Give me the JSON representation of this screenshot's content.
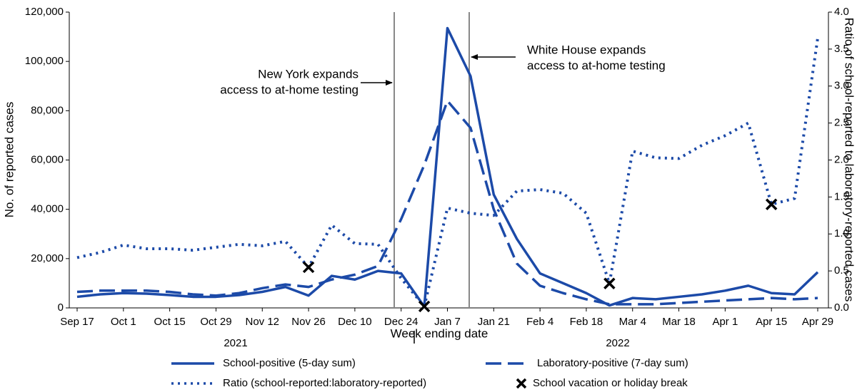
{
  "chart_data": {
    "type": "line",
    "categories": [
      "Sep 17",
      null,
      "Oct 1",
      null,
      "Oct 15",
      null,
      "Oct 29",
      null,
      "Nov 12",
      null,
      "Nov 26",
      null,
      "Dec 10",
      null,
      "Dec 24",
      null,
      "Jan 7",
      null,
      "Jan 21",
      null,
      "Feb 4",
      null,
      "Feb 18",
      null,
      "Mar 4",
      null,
      "Mar 18",
      null,
      "Apr 1",
      null,
      "Apr 15",
      null,
      "Apr 29"
    ],
    "year_labels": [
      "2021",
      "2022"
    ],
    "x_label": "Week ending date",
    "y_label": "No. of reported cases",
    "y2_label": "Ratio of school-reported to laboratory-reported cases",
    "ylim": [
      0,
      120000
    ],
    "yticks": [
      0,
      {
        "value": 20000,
        "label": "20,000"
      },
      {
        "value": 40000,
        "label": "40,000"
      },
      {
        "value": 60000,
        "label": "60,000"
      },
      {
        "value": 80000,
        "label": "80,000"
      },
      {
        "value": 100000,
        "label": "100,000"
      },
      {
        "value": 120000,
        "label": "120,000"
      }
    ],
    "y2lim": [
      0,
      4
    ],
    "y2ticks": [
      {
        "value": 0,
        "label": "0.0"
      },
      {
        "value": 0.5,
        "label": "0.5"
      },
      {
        "value": 1,
        "label": "1.0"
      },
      {
        "value": 1.5,
        "label": "1.5"
      },
      {
        "value": 2,
        "label": "2.0"
      },
      {
        "value": 2.5,
        "label": "2.5"
      },
      {
        "value": 3,
        "label": "3.0"
      },
      {
        "value": 3.5,
        "label": "3.5"
      },
      {
        "value": 4,
        "label": "4.0"
      }
    ],
    "annotations": [
      {
        "lines": [
          "New York expands",
          "access to at-home testing"
        ]
      },
      {
        "lines": [
          "White House expands",
          "access to at-home testing"
        ]
      }
    ],
    "series": [
      {
        "name": "School-positive (5-day sum)",
        "color": "#1c4aa8",
        "style": "solid",
        "values": [
          4500,
          5500,
          6000,
          5800,
          5200,
          4500,
          4500,
          5200,
          6500,
          8500,
          5000,
          13000,
          11500,
          15000,
          14000,
          500,
          113500,
          94000,
          46000,
          28000,
          14000,
          10000,
          6000,
          1000,
          4000,
          3500,
          4500,
          5500,
          7000,
          9000,
          6000,
          5500,
          14500
        ]
      },
      {
        "name": "Laboratory-positive (7-day sum)",
        "color": "#1c4aa8",
        "style": "dashed",
        "values": [
          6500,
          7000,
          7000,
          7000,
          6500,
          5500,
          5000,
          6000,
          8000,
          9500,
          8500,
          11500,
          13500,
          17000,
          36000,
          58000,
          84000,
          73000,
          40000,
          18000,
          9000,
          6000,
          3500,
          1500,
          1500,
          1500,
          2000,
          2500,
          3000,
          3500,
          4000,
          3500,
          4000
        ]
      },
      {
        "name": "Ratio (school-reported:laboratory-reported)",
        "color": "#1c4aa8",
        "style": "dotted",
        "axis": "y2",
        "values": [
          0.68,
          0.75,
          0.85,
          0.8,
          0.8,
          0.78,
          0.82,
          0.86,
          0.84,
          0.9,
          0.55,
          1.12,
          0.87,
          0.86,
          0.4,
          0.02,
          1.35,
          1.28,
          1.25,
          1.58,
          1.6,
          1.55,
          1.28,
          0.33,
          2.12,
          2.03,
          2.02,
          2.2,
          2.33,
          2.5,
          1.4,
          1.48,
          3.65
        ]
      },
      {
        "name": "School vacation or holiday break",
        "color": "#000000",
        "style": "marker",
        "axis": "y2",
        "values": [
          null,
          null,
          null,
          null,
          null,
          null,
          null,
          null,
          null,
          null,
          0.55,
          null,
          null,
          null,
          null,
          0.02,
          null,
          null,
          null,
          null,
          null,
          null,
          null,
          0.33,
          null,
          null,
          null,
          null,
          null,
          null,
          1.4,
          null,
          null
        ]
      }
    ]
  }
}
